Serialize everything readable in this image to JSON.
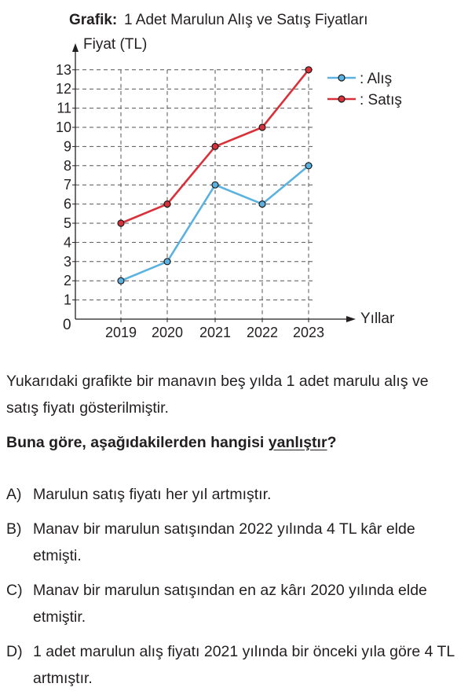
{
  "chart_data": {
    "type": "line",
    "title_bold": "Grafik:",
    "title": "1 Adet Marulun Alış ve Satış Fiyatları",
    "ylabel": "Fiyat (TL)",
    "xlabel": "Yıllar",
    "origin_label": "0",
    "categories": [
      "2019",
      "2020",
      "2021",
      "2022",
      "2023"
    ],
    "yticks": [
      "1",
      "2",
      "3",
      "4",
      "5",
      "6",
      "7",
      "8",
      "9",
      "10",
      "11",
      "12",
      "13"
    ],
    "ylim": [
      0,
      13
    ],
    "grid": true,
    "legend_position": "top-right",
    "series": [
      {
        "name": ": Alış",
        "values": [
          2,
          3,
          7,
          6,
          8
        ],
        "color": "#5bb2e0"
      },
      {
        "name": ": Satış",
        "values": [
          5,
          6,
          9,
          10,
          13
        ],
        "color": "#d9313a"
      }
    ]
  },
  "text": {
    "intro": "Yukarıdaki grafikte bir manavın beş yılda 1 adet marulu alış ve satış fiyatı gösterilmiştir.",
    "question_pre": "Buna göre, aşağıdakilerden hangisi ",
    "question_emph": "yanlıştır",
    "question_post": "?"
  },
  "options": [
    {
      "letter": "A)",
      "text": "Marulun satış fiyatı her yıl artmıştır."
    },
    {
      "letter": "B)",
      "text": "Manav bir marulun satışından 2022 yılında 4 TL kâr elde etmişti."
    },
    {
      "letter": "C)",
      "text": "Manav bir marulun satışından en az kârı  2020 yılında elde etmiştir."
    },
    {
      "letter": "D)",
      "text": "1 adet marulun alış fiyatı 2021 yılında bir önceki yıla göre 4 TL artmıştır."
    }
  ]
}
